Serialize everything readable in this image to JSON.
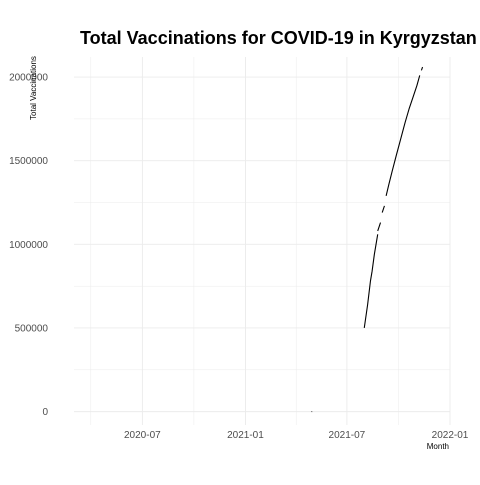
{
  "chart_data": {
    "type": "line",
    "title": "Total Vaccinations for COVID-19 in Kyrgyzstan",
    "xlabel": "Month",
    "ylabel": "Total Vaccinations",
    "x_type": "date",
    "xlim": [
      "2020-03-01",
      "2022-01-01"
    ],
    "ylim": [
      -80000,
      2120000
    ],
    "x_ticks": [
      "2020-07-01",
      "2021-01-01",
      "2021-07-01",
      "2022-01-01"
    ],
    "x_tick_labels": [
      "2020-07",
      "2021-01",
      "2021-07",
      "2022-01"
    ],
    "y_ticks": [
      0,
      500000,
      1000000,
      1500000,
      2000000
    ],
    "y_tick_labels": [
      "0",
      "500000",
      "1000000",
      "1500000",
      "2000000"
    ],
    "grid": true,
    "line_color": "#000000",
    "series": [
      {
        "values": [
          {
            "x": "2021-04-29",
            "y": 100
          },
          {
            "x": "2021-04-30",
            "y": 400
          }
        ]
      },
      {
        "values": [
          {
            "x": "2021-08-01",
            "y": 500000
          },
          {
            "x": "2021-08-07",
            "y": 640000
          },
          {
            "x": "2021-08-12",
            "y": 780000
          },
          {
            "x": "2021-08-15",
            "y": 840000
          },
          {
            "x": "2021-08-19",
            "y": 940000
          },
          {
            "x": "2021-08-22",
            "y": 1000000
          },
          {
            "x": "2021-08-25",
            "y": 1060000
          }
        ]
      },
      {
        "values": [
          {
            "x": "2021-08-25",
            "y": 1080000
          },
          {
            "x": "2021-08-28",
            "y": 1110000
          },
          {
            "x": "2021-08-30",
            "y": 1130000
          }
        ]
      },
      {
        "values": [
          {
            "x": "2021-09-02",
            "y": 1190000
          },
          {
            "x": "2021-09-06",
            "y": 1230000
          }
        ]
      },
      {
        "values": [
          {
            "x": "2021-09-09",
            "y": 1290000
          },
          {
            "x": "2021-09-14",
            "y": 1360000
          },
          {
            "x": "2021-09-20",
            "y": 1440000
          },
          {
            "x": "2021-09-27",
            "y": 1530000
          },
          {
            "x": "2021-10-05",
            "y": 1630000
          },
          {
            "x": "2021-10-13",
            "y": 1730000
          },
          {
            "x": "2021-10-20",
            "y": 1810000
          },
          {
            "x": "2021-10-27",
            "y": 1880000
          },
          {
            "x": "2021-11-03",
            "y": 1950000
          },
          {
            "x": "2021-11-08",
            "y": 2010000
          }
        ]
      },
      {
        "values": [
          {
            "x": "2021-11-11",
            "y": 2040000
          },
          {
            "x": "2021-11-13",
            "y": 2060000
          }
        ]
      }
    ]
  }
}
